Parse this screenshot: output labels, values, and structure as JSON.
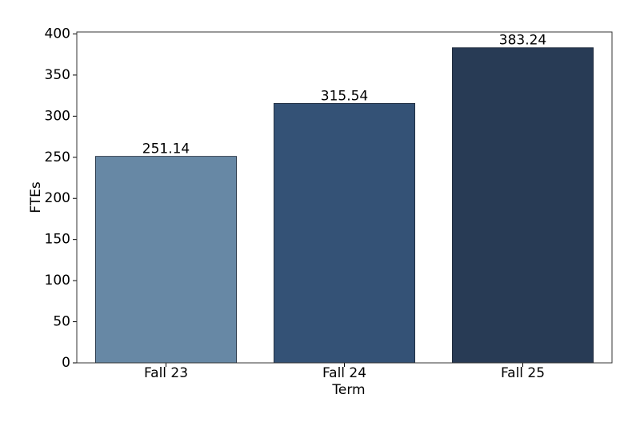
{
  "chart_data": {
    "type": "bar",
    "x_label": "Term",
    "y_label": "FTEs",
    "categories": [
      "Fall 23",
      "Fall 24",
      "Fall 25"
    ],
    "values": [
      251.14,
      315.54,
      383.24
    ],
    "colors": [
      "#6788a5",
      "#345276",
      "#283b55"
    ],
    "ylim": [
      0,
      402.4
    ],
    "yticks": [
      0,
      50,
      100,
      150,
      200,
      250,
      300,
      350,
      400
    ]
  }
}
